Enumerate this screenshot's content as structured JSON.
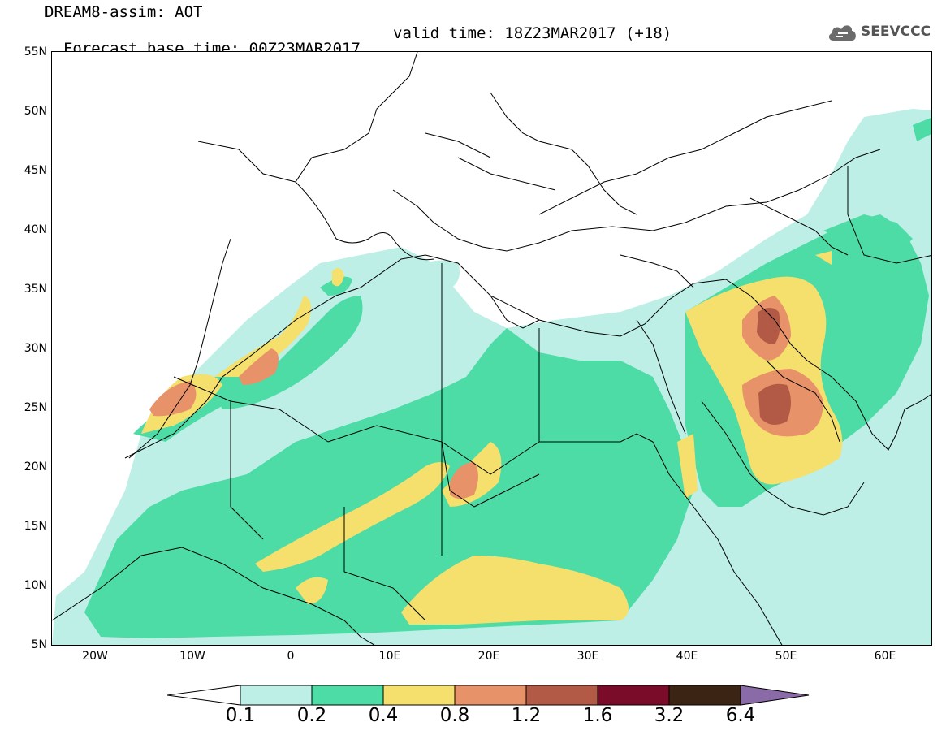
{
  "header": {
    "line1": "DREAM8-assim: AOT",
    "base_time": "Forecast base time: 00Z23MAR2017",
    "valid_time": "valid time: 18Z23MAR2017 (+18)",
    "logo": "SEEVCCC"
  },
  "axes": {
    "lat_labels": [
      "55N",
      "50N",
      "45N",
      "40N",
      "35N",
      "30N",
      "25N",
      "20N",
      "15N",
      "10N",
      "5N"
    ],
    "lon_labels": [
      "20W",
      "10W",
      "0",
      "10E",
      "20E",
      "30E",
      "40E",
      "50E",
      "60E"
    ]
  },
  "colorbar": {
    "labels": [
      "0.1",
      "0.2",
      "0.4",
      "0.8",
      "1.2",
      "1.6",
      "3.2",
      "6.4"
    ],
    "colors": [
      "#ffffff",
      "#bdefe6",
      "#4ddba6",
      "#f5e06e",
      "#e8926a",
      "#b35a46",
      "#7a0c2a",
      "#3b2414",
      "#8b6aa8"
    ]
  },
  "map": {
    "colors": {
      "c1": "#bdefe6",
      "c2": "#4ddba6",
      "c3": "#f5e06e",
      "c4": "#e8926a",
      "c5": "#b35a46",
      "c6": "#7a0c2a"
    }
  }
}
